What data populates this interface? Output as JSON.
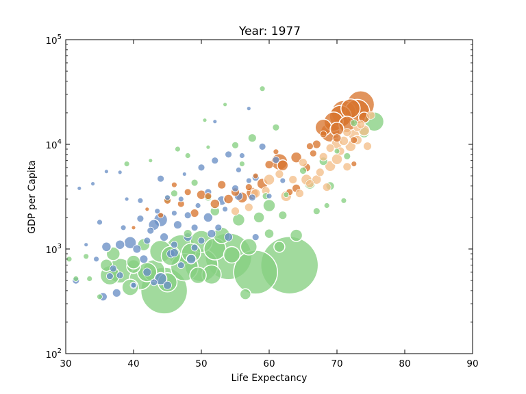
{
  "chart_data": {
    "type": "scatter",
    "title": "Year: 1977",
    "xlabel": "Life Expectancy",
    "ylabel": "GDP per Capita",
    "xlim": [
      30,
      90
    ],
    "ylim": [
      100,
      100000
    ],
    "yscale": "log",
    "grid": false,
    "xticks": [
      30,
      40,
      50,
      60,
      70,
      80,
      90
    ],
    "xtick_labels": [
      "30",
      "40",
      "50",
      "60",
      "70",
      "80",
      "90"
    ],
    "yticks": [
      100,
      1000,
      10000,
      100000
    ],
    "ytick_labels": [
      {
        "base": "10",
        "exp": "2"
      },
      {
        "base": "10",
        "exp": "3"
      },
      {
        "base": "10",
        "exp": "4"
      },
      {
        "base": "10",
        "exp": "5"
      }
    ],
    "series_colors": {
      "blue": "#6a8fc5",
      "green": "#86cf82",
      "orange": "#d8762f",
      "peach": "#f4bf8a"
    },
    "series": [
      {
        "color": "blue",
        "points": [
          [
            31.5,
            500,
            5
          ],
          [
            32,
            3800,
            3
          ],
          [
            33,
            1100,
            3
          ],
          [
            34,
            4200,
            3
          ],
          [
            34.5,
            800,
            4
          ],
          [
            35,
            1800,
            4
          ],
          [
            35.5,
            350,
            6
          ],
          [
            36,
            5500,
            3
          ],
          [
            36,
            1050,
            7
          ],
          [
            36.5,
            550,
            5
          ],
          [
            37,
            650,
            5
          ],
          [
            37.5,
            380,
            6
          ],
          [
            38,
            5400,
            3
          ],
          [
            38,
            1100,
            7
          ],
          [
            38.5,
            1600,
            4
          ],
          [
            39,
            3000,
            3
          ],
          [
            39.5,
            1150,
            9
          ],
          [
            40,
            450,
            5
          ],
          [
            40.5,
            1000,
            6
          ],
          [
            41,
            1950,
            5
          ],
          [
            41,
            2900,
            4
          ],
          [
            41.5,
            800,
            6
          ],
          [
            42,
            1200,
            5
          ],
          [
            42,
            600,
            6
          ],
          [
            42.5,
            1500,
            5
          ],
          [
            43,
            1700,
            8
          ],
          [
            43.5,
            2300,
            4
          ],
          [
            44,
            4700,
            5
          ],
          [
            44,
            1900,
            10
          ],
          [
            44,
            520,
            9
          ],
          [
            44.5,
            1300,
            6
          ],
          [
            45,
            450,
            6
          ],
          [
            45,
            3100,
            4
          ],
          [
            45.5,
            900,
            6
          ],
          [
            46,
            1100,
            5
          ],
          [
            46,
            2200,
            4
          ],
          [
            46.5,
            1700,
            6
          ],
          [
            47,
            700,
            5
          ],
          [
            47,
            3000,
            4
          ],
          [
            47.5,
            5200,
            3
          ],
          [
            48,
            2100,
            5
          ],
          [
            48,
            1300,
            6
          ],
          [
            48.5,
            800,
            7
          ],
          [
            49,
            1600,
            5
          ],
          [
            49.5,
            2600,
            4
          ],
          [
            50,
            6000,
            5
          ],
          [
            50,
            1200,
            5
          ],
          [
            51,
            3500,
            5
          ],
          [
            51,
            2000,
            7
          ],
          [
            51.5,
            1400,
            6
          ],
          [
            52,
            7000,
            5
          ],
          [
            52,
            16500,
            3
          ],
          [
            52.5,
            1600,
            5
          ],
          [
            53,
            2900,
            7
          ],
          [
            53.5,
            2400,
            4
          ],
          [
            54,
            8000,
            5
          ],
          [
            54,
            1300,
            6
          ],
          [
            55,
            3800,
            5
          ],
          [
            55.5,
            3200,
            6
          ],
          [
            55.5,
            5700,
            4
          ],
          [
            56,
            7800,
            4
          ],
          [
            57,
            22000,
            3
          ],
          [
            57,
            4500,
            4
          ],
          [
            57.5,
            3100,
            5
          ],
          [
            58,
            4800,
            5
          ],
          [
            58,
            1300,
            5
          ],
          [
            59,
            9500,
            5
          ],
          [
            60,
            3200,
            4
          ],
          [
            61,
            7100,
            5
          ],
          [
            62,
            4500,
            4
          ],
          [
            40,
            450,
            4
          ],
          [
            38,
            560,
            5
          ],
          [
            43,
            480,
            5
          ],
          [
            46,
            920,
            6
          ],
          [
            49,
            1030,
            5
          ]
        ]
      },
      {
        "color": "green",
        "points": [
          [
            30.5,
            800,
            4
          ],
          [
            31.5,
            520,
            4
          ],
          [
            33,
            850,
            4
          ],
          [
            33.5,
            520,
            4
          ],
          [
            35,
            350,
            4
          ],
          [
            36,
            700,
            9
          ],
          [
            36.5,
            560,
            14
          ],
          [
            38,
            620,
            18
          ],
          [
            39,
            6500,
            4
          ],
          [
            40,
            680,
            10
          ],
          [
            40,
            750,
            10
          ],
          [
            41,
            520,
            16
          ],
          [
            41.5,
            1100,
            9
          ],
          [
            42,
            600,
            14
          ],
          [
            42.5,
            7000,
            3
          ],
          [
            43,
            620,
            16
          ],
          [
            44,
            950,
            16
          ],
          [
            44.5,
            400,
            34
          ],
          [
            45,
            480,
            14
          ],
          [
            45.5,
            860,
            14
          ],
          [
            46,
            3400,
            5
          ],
          [
            46.5,
            9000,
            4
          ],
          [
            47,
            980,
            22
          ],
          [
            47.5,
            670,
            20
          ],
          [
            48,
            7800,
            4
          ],
          [
            48.5,
            920,
            14
          ],
          [
            49,
            4300,
            5
          ],
          [
            49.5,
            560,
            12
          ],
          [
            50,
            1180,
            16
          ],
          [
            50,
            700,
            24
          ],
          [
            50.5,
            17000,
            3
          ],
          [
            51,
            9400,
            3
          ],
          [
            51.5,
            570,
            14
          ],
          [
            52,
            2300,
            7
          ],
          [
            52,
            1000,
            16
          ],
          [
            53,
            1350,
            12
          ],
          [
            53.5,
            24000,
            3
          ],
          [
            54,
            850,
            34
          ],
          [
            54.5,
            880,
            12
          ],
          [
            55,
            9800,
            5
          ],
          [
            55.5,
            1900,
            9
          ],
          [
            56,
            6500,
            4
          ],
          [
            56.5,
            370,
            8
          ],
          [
            57,
            1050,
            12
          ],
          [
            57.5,
            11500,
            6
          ],
          [
            58,
            600,
            32
          ],
          [
            58.5,
            2000,
            8
          ],
          [
            59,
            34000,
            4
          ],
          [
            59.5,
            3200,
            5
          ],
          [
            60,
            2600,
            9
          ],
          [
            61,
            14500,
            5
          ],
          [
            61.5,
            1050,
            8
          ],
          [
            62,
            2100,
            6
          ],
          [
            62.5,
            3300,
            4
          ],
          [
            63,
            700,
            42
          ],
          [
            64,
            1350,
            9
          ],
          [
            65,
            5600,
            5
          ],
          [
            66,
            4200,
            8
          ],
          [
            67,
            2300,
            5
          ],
          [
            68,
            6900,
            6
          ],
          [
            68.5,
            2600,
            4
          ],
          [
            69,
            4000,
            6
          ],
          [
            70,
            8600,
            4
          ],
          [
            71,
            2900,
            4
          ],
          [
            71.5,
            7700,
            5
          ],
          [
            72.5,
            16000,
            5
          ],
          [
            74,
            13000,
            8
          ],
          [
            75.5,
            16500,
            14
          ],
          [
            37,
            900,
            10
          ],
          [
            39.5,
            430,
            12
          ],
          [
            48,
            1400,
            6
          ],
          [
            60,
            1400,
            7
          ],
          [
            51,
            3100,
            5
          ],
          [
            45,
            3000,
            5
          ]
        ]
      },
      {
        "color": "orange",
        "points": [
          [
            40,
            1600,
            3
          ],
          [
            42,
            2400,
            3
          ],
          [
            44,
            2100,
            4
          ],
          [
            45,
            2900,
            5
          ],
          [
            46,
            4100,
            4
          ],
          [
            47,
            2700,
            5
          ],
          [
            48,
            3500,
            5
          ],
          [
            49,
            2200,
            6
          ],
          [
            50,
            3300,
            7
          ],
          [
            51,
            3200,
            5
          ],
          [
            52,
            2700,
            7
          ],
          [
            53,
            4100,
            6
          ],
          [
            54,
            3000,
            7
          ],
          [
            55,
            3500,
            6
          ],
          [
            56,
            3100,
            8
          ],
          [
            57,
            3900,
            5
          ],
          [
            57.5,
            3400,
            9
          ],
          [
            58,
            5000,
            4
          ],
          [
            59,
            4200,
            8
          ],
          [
            60,
            6400,
            6
          ],
          [
            61,
            8500,
            4
          ],
          [
            61.5,
            6800,
            12
          ],
          [
            62,
            6300,
            8
          ],
          [
            63,
            3500,
            5
          ],
          [
            64,
            7500,
            8
          ],
          [
            64,
            3800,
            6
          ],
          [
            65.5,
            6000,
            6
          ],
          [
            66,
            9600,
            5
          ],
          [
            67,
            10000,
            6
          ],
          [
            68,
            12500,
            5
          ],
          [
            68,
            14500,
            12
          ],
          [
            69,
            13000,
            14
          ],
          [
            69.5,
            16500,
            14
          ],
          [
            70,
            14000,
            10
          ],
          [
            70.5,
            18500,
            16
          ],
          [
            71,
            20000,
            18
          ],
          [
            71.5,
            15500,
            12
          ],
          [
            72,
            22000,
            14
          ],
          [
            72.5,
            11000,
            5
          ],
          [
            73,
            20500,
            18
          ],
          [
            73.5,
            24000,
            20
          ],
          [
            74,
            18000,
            8
          ],
          [
            72.5,
            6500,
            4
          ],
          [
            66.5,
            8200,
            5
          ],
          [
            70,
            11500,
            6
          ]
        ]
      },
      {
        "color": "peach",
        "points": [
          [
            55,
            2300,
            6
          ],
          [
            57,
            2500,
            6
          ],
          [
            58,
            3400,
            7
          ],
          [
            59.5,
            3600,
            6
          ],
          [
            60,
            4600,
            8
          ],
          [
            61.5,
            5200,
            6
          ],
          [
            62.5,
            3200,
            8
          ],
          [
            63.5,
            4600,
            6
          ],
          [
            64.5,
            3400,
            6
          ],
          [
            65,
            6700,
            6
          ],
          [
            65.5,
            4600,
            8
          ],
          [
            66,
            4200,
            6
          ],
          [
            67,
            4600,
            7
          ],
          [
            67.5,
            5400,
            6
          ],
          [
            68,
            7600,
            6
          ],
          [
            68.5,
            3900,
            6
          ],
          [
            69,
            9200,
            6
          ],
          [
            69,
            6200,
            8
          ],
          [
            70,
            7200,
            8
          ],
          [
            70,
            10200,
            8
          ],
          [
            70.5,
            8600,
            6
          ],
          [
            71,
            10800,
            7
          ],
          [
            71.5,
            6100,
            6
          ],
          [
            72,
            9600,
            8
          ],
          [
            72.5,
            12300,
            8
          ],
          [
            73,
            11000,
            7
          ],
          [
            73,
            14500,
            6
          ],
          [
            74,
            13600,
            8
          ],
          [
            74.5,
            9600,
            6
          ],
          [
            75,
            19000,
            6
          ],
          [
            71.5,
            13000,
            6
          ],
          [
            73.5,
            15500,
            6
          ]
        ]
      }
    ]
  }
}
